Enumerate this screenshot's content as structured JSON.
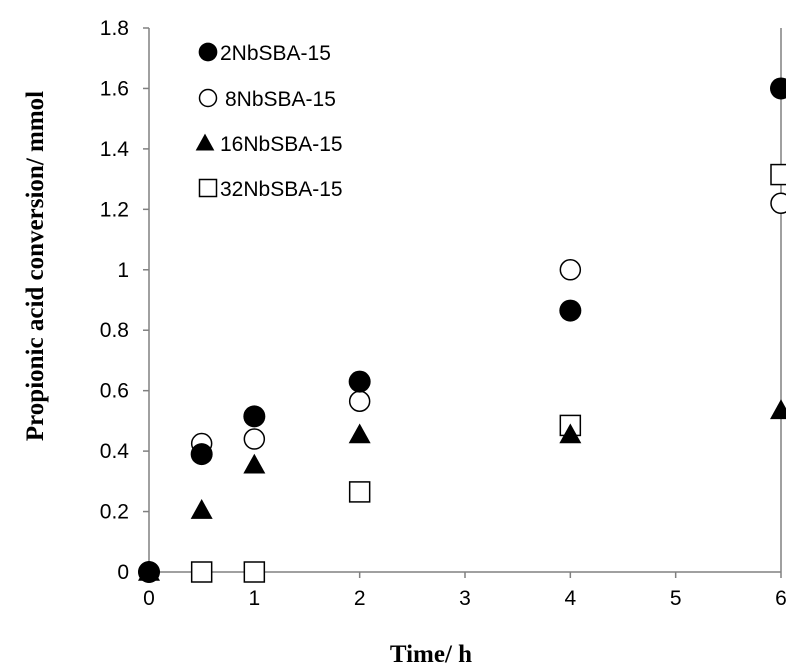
{
  "chart_data": {
    "type": "scatter",
    "xlabel": "Time/ h",
    "ylabel": "Propionic acid conversion/ mmol",
    "xlim": [
      0,
      6
    ],
    "ylim": [
      0,
      1.8
    ],
    "xticks": [
      "0",
      "1",
      "2",
      "3",
      "4",
      "5",
      "6"
    ],
    "yticks": [
      "0",
      "0.2",
      "0.4",
      "0.6",
      "0.8",
      "1",
      "1.2",
      "1.4",
      "1.6",
      "1.8"
    ],
    "grid": false,
    "legend_position": "top-left",
    "series": [
      {
        "name": "2NbSBA-15",
        "marker": "filled-circle",
        "x": [
          0,
          0.5,
          1,
          2,
          4,
          6
        ],
        "y": [
          0,
          0.39,
          0.515,
          0.63,
          0.865,
          1.6
        ]
      },
      {
        "name": "8NbSBA-15",
        "marker": "open-circle",
        "x": [
          0,
          0.5,
          1,
          2,
          4,
          6
        ],
        "y": [
          0,
          0.425,
          0.44,
          0.565,
          1.0,
          1.22
        ]
      },
      {
        "name": "16NbSBA-15",
        "marker": "filled-triangle",
        "x": [
          0,
          0.5,
          1,
          2,
          4,
          6
        ],
        "y": [
          0,
          0.205,
          0.355,
          0.455,
          0.455,
          0.535
        ]
      },
      {
        "name": "32NbSBA-15",
        "marker": "open-square",
        "x": [
          0.5,
          1,
          2,
          4,
          6
        ],
        "y": [
          0,
          0,
          0.265,
          0.485,
          1.315
        ]
      }
    ]
  }
}
